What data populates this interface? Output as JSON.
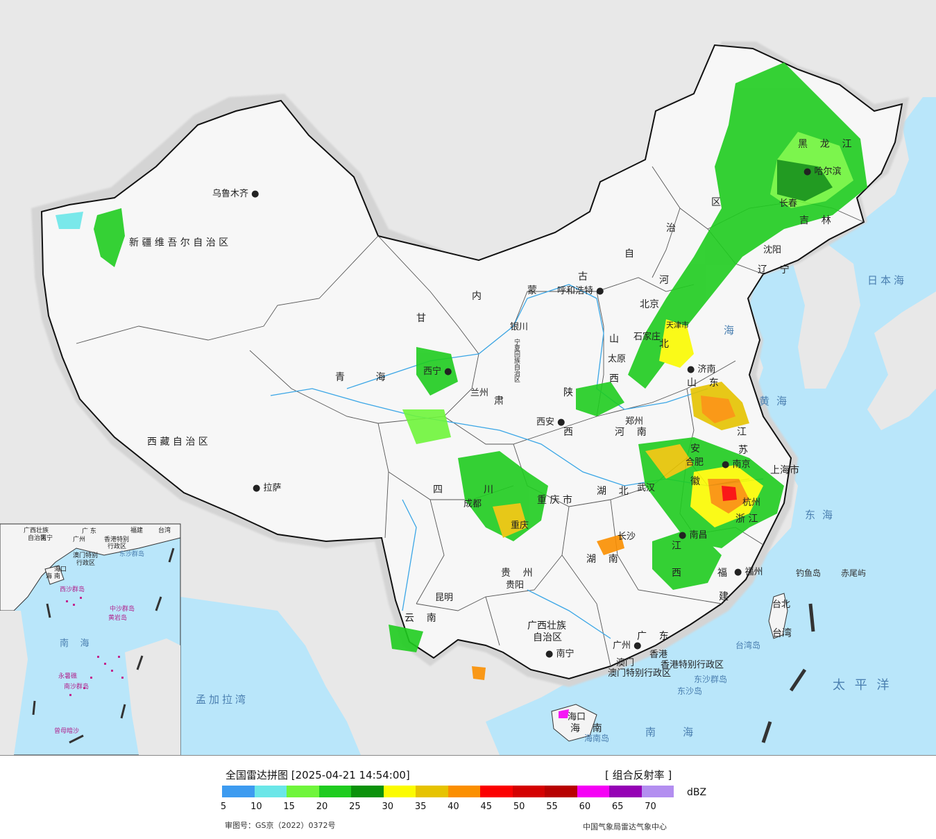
{
  "map": {
    "provinces": [
      {
        "id": "xinjiang",
        "label": "新 疆 维 吾 尔 自 治 区"
      },
      {
        "id": "xizang",
        "label": "西 藏 自 治 区"
      },
      {
        "id": "qinghai",
        "label": "青          海"
      },
      {
        "id": "gansu",
        "label": "甘"
      },
      {
        "id": "neimenggu-1",
        "label": "内"
      },
      {
        "id": "neimenggu-2",
        "label": "蒙"
      },
      {
        "id": "neimenggu-3",
        "label": "古"
      },
      {
        "id": "neimenggu-4",
        "label": "自"
      },
      {
        "id": "neimenggu-5",
        "label": "治"
      },
      {
        "id": "neimenggu-6",
        "label": "区"
      },
      {
        "id": "heilongjiang",
        "label": "黑    龙    江"
      },
      {
        "id": "jilin",
        "label": "吉    林"
      },
      {
        "id": "liaoning",
        "label": "辽    宁"
      },
      {
        "id": "hebei-1",
        "label": "河"
      },
      {
        "id": "hebei-2",
        "label": "北"
      },
      {
        "id": "shanxi-1",
        "label": "山"
      },
      {
        "id": "shanxi-2",
        "label": "西"
      },
      {
        "id": "shandong",
        "label": "山    东"
      },
      {
        "id": "henan",
        "label": "河    南"
      },
      {
        "id": "shaanxi-1",
        "label": "陕"
      },
      {
        "id": "shaanxi-2",
        "label": "西"
      },
      {
        "id": "ningxia",
        "label": "宁夏回族自治区"
      },
      {
        "id": "sichuan-1",
        "label": "四"
      },
      {
        "id": "sichuan-2",
        "label": "川"
      },
      {
        "id": "chongqing",
        "label": "重 庆 市"
      },
      {
        "id": "hubei",
        "label": "湖    北"
      },
      {
        "id": "hunan",
        "label": "湖    南"
      },
      {
        "id": "jiangxi-1",
        "label": "江"
      },
      {
        "id": "jiangxi-2",
        "label": "西"
      },
      {
        "id": "anhui-1",
        "label": "安"
      },
      {
        "id": "anhui-2",
        "label": "徽"
      },
      {
        "id": "jiangsu-1",
        "label": "江"
      },
      {
        "id": "jiangsu-2",
        "label": "苏"
      },
      {
        "id": "zhejiang",
        "label": "浙 江"
      },
      {
        "id": "fujian-1",
        "label": "福"
      },
      {
        "id": "fujian-2",
        "label": "建"
      },
      {
        "id": "guizhou",
        "label": "贵    州"
      },
      {
        "id": "yunnan",
        "label": "云    南"
      },
      {
        "id": "guangxi",
        "label": "广西壮族"
      },
      {
        "id": "guangxi-2",
        "label": "自治区"
      },
      {
        "id": "guangdong",
        "label": "广    东"
      },
      {
        "id": "hainan",
        "label": "海    南"
      },
      {
        "id": "shanghai",
        "label": "上海市"
      },
      {
        "id": "tianjin",
        "label": "天津市"
      },
      {
        "id": "beijing",
        "label": "北京"
      },
      {
        "id": "gansu-2",
        "label": "肃"
      },
      {
        "id": "taiwan",
        "label": "台湾"
      },
      {
        "id": "hk",
        "label": "香港特别行政区"
      },
      {
        "id": "macau",
        "label": "澳门特别行政区"
      }
    ],
    "cities": [
      {
        "id": "urumqi",
        "label": "乌鲁木齐"
      },
      {
        "id": "lhasa",
        "label": "拉萨"
      },
      {
        "id": "xining",
        "label": "西宁"
      },
      {
        "id": "lanzhou",
        "label": "兰州"
      },
      {
        "id": "yinchuan",
        "label": "银川"
      },
      {
        "id": "hohhot",
        "label": "呼和浩特"
      },
      {
        "id": "harbin",
        "label": "哈尔滨"
      },
      {
        "id": "changchun",
        "label": "长春"
      },
      {
        "id": "shenyang",
        "label": "沈阳"
      },
      {
        "id": "shijiazhuang",
        "label": "石家庄"
      },
      {
        "id": "taiyuan",
        "label": "太原"
      },
      {
        "id": "jinan",
        "label": "济南"
      },
      {
        "id": "zhengzhou",
        "label": "郑州"
      },
      {
        "id": "xian",
        "label": "西安"
      },
      {
        "id": "chengdu",
        "label": "成都"
      },
      {
        "id": "chongqing-c",
        "label": "重庆"
      },
      {
        "id": "wuhan",
        "label": "武汉"
      },
      {
        "id": "hefei",
        "label": "合肥"
      },
      {
        "id": "nanjing",
        "label": "南京"
      },
      {
        "id": "hangzhou",
        "label": "杭州"
      },
      {
        "id": "changsha",
        "label": "长沙"
      },
      {
        "id": "nanchang",
        "label": "南昌"
      },
      {
        "id": "fuzhou",
        "label": "福州"
      },
      {
        "id": "guiyang",
        "label": "贵阳"
      },
      {
        "id": "kunming",
        "label": "昆明"
      },
      {
        "id": "nanning",
        "label": "南宁"
      },
      {
        "id": "guangzhou",
        "label": "广州"
      },
      {
        "id": "hongkong",
        "label": "香港"
      },
      {
        "id": "macao",
        "label": "澳门"
      },
      {
        "id": "haikou",
        "label": "海口"
      },
      {
        "id": "taibei",
        "label": "台北"
      }
    ],
    "seas": [
      {
        "id": "riben-hai",
        "label": "日本海"
      },
      {
        "id": "huanghai",
        "label": "黄海"
      },
      {
        "id": "donghai",
        "label": "东海"
      },
      {
        "id": "nanhai",
        "label": "南    海"
      },
      {
        "id": "taipingyang",
        "label": "太 平 洋"
      },
      {
        "id": "mengjiala",
        "label": "孟加拉湾"
      },
      {
        "id": "bohai",
        "label": "海"
      }
    ],
    "islands": [
      {
        "id": "diaoyu",
        "label": "钓鱼岛"
      },
      {
        "id": "chiwei",
        "label": "赤尾屿"
      },
      {
        "id": "taiwan-dao",
        "label": "台湾岛"
      },
      {
        "id": "dongsha-qd",
        "label": "东沙群岛"
      },
      {
        "id": "dongsha-d",
        "label": "东沙岛"
      },
      {
        "id": "hainan-dao",
        "label": "海南岛"
      }
    ],
    "inset": {
      "labels": [
        {
          "id": "ins-gx",
          "label": "广西壮族"
        },
        {
          "id": "ins-gx2",
          "label": "自治区"
        },
        {
          "id": "ins-gd",
          "label": "广  东"
        },
        {
          "id": "ins-fj",
          "label": "福建"
        },
        {
          "id": "ins-tw",
          "label": "台湾"
        },
        {
          "id": "ins-nn",
          "label": "南宁"
        },
        {
          "id": "ins-gz",
          "label": "广州"
        },
        {
          "id": "ins-hk",
          "label": "香港特别"
        },
        {
          "id": "ins-hk2",
          "label": "行政区"
        },
        {
          "id": "ins-mo",
          "label": "澳门特别"
        },
        {
          "id": "ins-mo2",
          "label": "行政区"
        },
        {
          "id": "ins-ds",
          "label": "东沙群岛"
        },
        {
          "id": "ins-hk3",
          "label": "海口"
        },
        {
          "id": "ins-hn",
          "label": "海  南"
        },
        {
          "id": "ins-xs",
          "label": "西沙群岛"
        },
        {
          "id": "ins-zs",
          "label": "中沙群岛"
        },
        {
          "id": "ins-hy",
          "label": "黄岩岛"
        },
        {
          "id": "ins-nh",
          "label": "南    海"
        },
        {
          "id": "ins-ns",
          "label": "南沙群岛"
        },
        {
          "id": "ins-yx",
          "label": "永暑礁"
        },
        {
          "id": "ins-zm",
          "label": "曾母暗沙"
        }
      ]
    }
  },
  "legend": {
    "title": "全国雷达拼图 [2025-04-21 14:54:00]",
    "type": "[ 组合反射率 ]",
    "unit": "dBZ",
    "review_no": "审图号：GS京（2022）0372号",
    "source": "中国气象局雷达气象中心",
    "colors": [
      "#3d9bf0",
      "#6ae6e8",
      "#6ff53b",
      "#1fcc1f",
      "#0b920b",
      "#fbfb00",
      "#e6c300",
      "#fb8f00",
      "#fb0000",
      "#d40000",
      "#b80000",
      "#f500f5",
      "#9500b5",
      "#b38ef0"
    ],
    "ticks": [
      "5",
      "10",
      "15",
      "20",
      "25",
      "30",
      "35",
      "40",
      "45",
      "50",
      "55",
      "60",
      "65",
      "70"
    ]
  }
}
